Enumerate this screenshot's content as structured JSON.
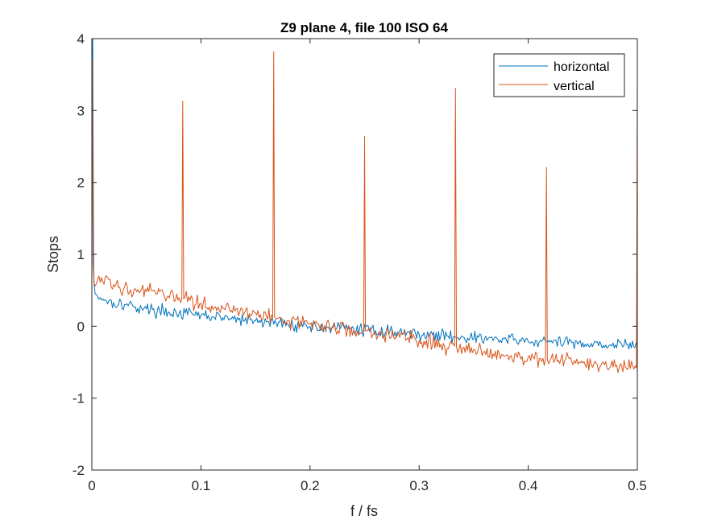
{
  "chart_data": {
    "type": "line",
    "title": "Z9 plane 4, file 100 ISO 64",
    "xlabel": "f / fs",
    "ylabel": "Stops",
    "xlim": [
      0,
      0.5
    ],
    "ylim": [
      -2,
      4
    ],
    "xticks": [
      0,
      0.1,
      0.2,
      0.3,
      0.4,
      0.5
    ],
    "xtick_labels": [
      "0",
      "0.1",
      "0.2",
      "0.3",
      "0.4",
      "0.5"
    ],
    "yticks": [
      -2,
      -1,
      0,
      1,
      2,
      3,
      4
    ],
    "ytick_labels": [
      "-2",
      "-1",
      "0",
      "1",
      "2",
      "3",
      "4"
    ],
    "grid": false,
    "legend_position": "top-right",
    "series": [
      {
        "name": "horizontal",
        "color": "#0072BD",
        "points": [
          [
            0.0,
            0.5
          ],
          [
            0.0004,
            3.9
          ],
          [
            0.0008,
            4.0
          ],
          [
            0.0012,
            2.4
          ],
          [
            0.0016,
            1.0
          ],
          [
            0.002,
            0.6
          ],
          [
            0.003,
            0.45
          ],
          [
            0.01,
            0.38
          ],
          [
            0.02,
            0.33
          ],
          [
            0.03,
            0.3
          ],
          [
            0.04,
            0.27
          ],
          [
            0.05,
            0.24
          ],
          [
            0.06,
            0.22
          ],
          [
            0.07,
            0.2
          ],
          [
            0.08,
            0.18
          ],
          [
            0.1,
            0.15
          ],
          [
            0.12,
            0.12
          ],
          [
            0.14,
            0.08
          ],
          [
            0.16,
            0.06
          ],
          [
            0.18,
            0.03
          ],
          [
            0.2,
            0.0
          ],
          [
            0.22,
            -0.02
          ],
          [
            0.24,
            -0.04
          ],
          [
            0.26,
            -0.06
          ],
          [
            0.28,
            -0.08
          ],
          [
            0.3,
            -0.11
          ],
          [
            0.32,
            -0.13
          ],
          [
            0.34,
            -0.15
          ],
          [
            0.36,
            -0.17
          ],
          [
            0.38,
            -0.19
          ],
          [
            0.4,
            -0.21
          ],
          [
            0.42,
            -0.22
          ],
          [
            0.44,
            -0.23
          ],
          [
            0.46,
            -0.24
          ],
          [
            0.48,
            -0.26
          ],
          [
            0.5,
            -0.27
          ]
        ]
      },
      {
        "name": "vertical",
        "color": "#D95319",
        "points": [
          [
            0.0,
            0.55
          ],
          [
            0.0004,
            3.7
          ],
          [
            0.0008,
            2.2
          ],
          [
            0.0012,
            0.9
          ],
          [
            0.002,
            0.6
          ],
          [
            0.01,
            0.62
          ],
          [
            0.02,
            0.58
          ],
          [
            0.03,
            0.55
          ],
          [
            0.04,
            0.52
          ],
          [
            0.05,
            0.48
          ],
          [
            0.06,
            0.45
          ],
          [
            0.07,
            0.42
          ],
          [
            0.08,
            0.4
          ],
          [
            0.0825,
            0.38
          ],
          [
            0.0833,
            3.13
          ],
          [
            0.0842,
            0.38
          ],
          [
            0.09,
            0.36
          ],
          [
            0.1,
            0.32
          ],
          [
            0.12,
            0.25
          ],
          [
            0.14,
            0.19
          ],
          [
            0.16,
            0.14
          ],
          [
            0.1658,
            0.12
          ],
          [
            0.1667,
            3.82
          ],
          [
            0.1675,
            0.12
          ],
          [
            0.17,
            0.11
          ],
          [
            0.18,
            0.08
          ],
          [
            0.2,
            0.03
          ],
          [
            0.22,
            -0.02
          ],
          [
            0.24,
            -0.05
          ],
          [
            0.2492,
            -0.06
          ],
          [
            0.25,
            2.64
          ],
          [
            0.2508,
            -0.06
          ],
          [
            0.26,
            -0.08
          ],
          [
            0.28,
            -0.13
          ],
          [
            0.3,
            -0.2
          ],
          [
            0.32,
            -0.25
          ],
          [
            0.3325,
            -0.28
          ],
          [
            0.3333,
            3.31
          ],
          [
            0.3342,
            -0.28
          ],
          [
            0.34,
            -0.3
          ],
          [
            0.36,
            -0.35
          ],
          [
            0.38,
            -0.4
          ],
          [
            0.4,
            -0.43
          ],
          [
            0.4158,
            -0.46
          ],
          [
            0.4167,
            2.21
          ],
          [
            0.4175,
            -0.46
          ],
          [
            0.42,
            -0.47
          ],
          [
            0.44,
            -0.5
          ],
          [
            0.46,
            -0.53
          ],
          [
            0.48,
            -0.56
          ],
          [
            0.4992,
            -0.58
          ],
          [
            0.5,
            3.45
          ]
        ]
      }
    ]
  }
}
